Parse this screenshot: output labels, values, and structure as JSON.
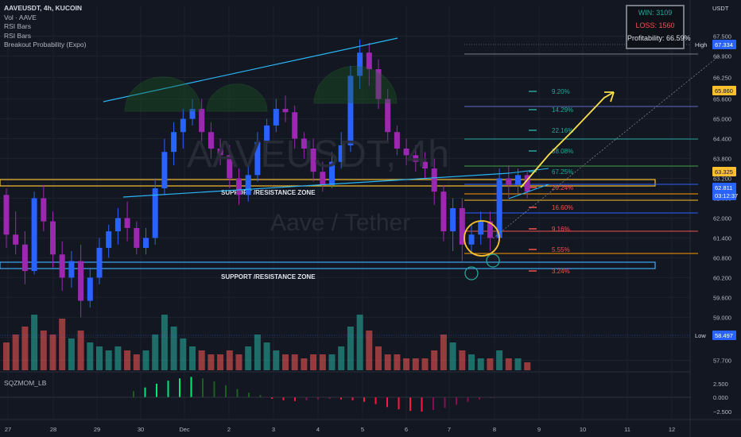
{
  "header": {
    "symbol_line": "AAVEUSDT, 4h, KUCOIN",
    "indicators": [
      "Vol · AAVE",
      "RSI Bars",
      "RSI Bars",
      "Breakout Probability (Expo)"
    ]
  },
  "stats": {
    "win": "WIN: 3109",
    "loss": "LOSS: 1560",
    "profitability": "Profitability: 66.59%"
  },
  "currency": "USDT",
  "watermark": {
    "main": "AAVEUSDT, 4h",
    "sub": "Aave / Tether"
  },
  "oscillator": {
    "label": "SQZMOM_LB",
    "ticks": [
      "2.500",
      "0.000",
      "−2.500"
    ]
  },
  "zones": {
    "upper_label": "SUPPORT /RESISTANCE ZONE",
    "lower_label": "SUPPORT /RESISTANCE ZONE"
  },
  "markers": {
    "high_label": "High",
    "high_value": "67.334",
    "low_label": "Low",
    "low_value": "58.497",
    "level_1": "65.860",
    "level_2": "63.325",
    "price": "62.811",
    "countdown": "03:12:37"
  },
  "colors": {
    "bull": "#2962ff",
    "bear": "#9c27b0",
    "vol_up": "#26a69a",
    "vol_down": "#ef5350",
    "zone": "#fbc02d",
    "zone2": "#42a5f5",
    "trend": "#29b6f6"
  },
  "chart_data": {
    "type": "candlestick",
    "x_ticks": [
      "27",
      "28",
      "29",
      "30",
      "Dec",
      "2",
      "3",
      "4",
      "5",
      "6",
      "7",
      "8",
      "9",
      "10",
      "11",
      "12"
    ],
    "y_ticks": [
      67.5,
      66.9,
      66.25,
      65.6,
      65.0,
      64.4,
      63.8,
      63.2,
      62.6,
      62.0,
      61.4,
      60.8,
      60.2,
      59.6,
      59.0,
      58.4,
      57.7
    ],
    "y_tick_labels": [
      "67.500",
      "66.900",
      "66.250",
      "65.600",
      "65.000",
      "64.400",
      "63.800",
      "63.200",
      "62.600",
      "62.000",
      "61.400",
      "60.800",
      "60.200",
      "59.600",
      "59.000",
      "58.400",
      "57.700"
    ],
    "ylim": [
      57.4,
      68.4
    ],
    "breakout_levels": [
      {
        "label": "9.20%",
        "color": "#26a69a"
      },
      {
        "label": "14.29%",
        "color": "#26a69a"
      },
      {
        "label": "22.16%",
        "color": "#26a69a"
      },
      {
        "label": "38.08%",
        "color": "#26a69a"
      },
      {
        "label": "67.25%",
        "color": "#26a69a"
      },
      {
        "label": "29.24%",
        "color": "#ef5350"
      },
      {
        "label": "16.60%",
        "color": "#ef5350"
      },
      {
        "label": "9.16%",
        "color": "#ef5350"
      },
      {
        "label": "5.55%",
        "color": "#ef5350"
      },
      {
        "label": "3.24%",
        "color": "#ef5350"
      }
    ],
    "candles_ohlc": [
      [
        62.7,
        62.9,
        61.1,
        61.5
      ],
      [
        61.5,
        62.2,
        60.9,
        61.2
      ],
      [
        61.2,
        61.6,
        60.0,
        60.4
      ],
      [
        60.4,
        62.8,
        60.3,
        62.6
      ],
      [
        62.6,
        63.0,
        61.6,
        61.9
      ],
      [
        61.9,
        62.2,
        60.5,
        60.9
      ],
      [
        60.9,
        61.3,
        59.8,
        60.2
      ],
      [
        60.2,
        61.0,
        59.9,
        60.7
      ],
      [
        60.7,
        61.2,
        59.0,
        59.5
      ],
      [
        59.5,
        60.5,
        59.3,
        60.2
      ],
      [
        60.2,
        61.4,
        60.0,
        61.1
      ],
      [
        61.1,
        61.8,
        60.8,
        61.6
      ],
      [
        61.6,
        62.3,
        61.2,
        62.0
      ],
      [
        62.0,
        62.5,
        61.3,
        61.7
      ],
      [
        61.7,
        61.9,
        60.9,
        61.1
      ],
      [
        61.1,
        61.7,
        60.9,
        61.4
      ],
      [
        61.4,
        63.2,
        61.2,
        62.9
      ],
      [
        62.9,
        64.4,
        62.7,
        64.0
      ],
      [
        64.0,
        64.9,
        63.6,
        64.6
      ],
      [
        64.6,
        65.3,
        64.1,
        65.0
      ],
      [
        65.0,
        65.6,
        64.8,
        65.3
      ],
      [
        65.3,
        65.6,
        64.3,
        64.6
      ],
      [
        64.6,
        64.9,
        63.8,
        64.1
      ],
      [
        64.1,
        64.4,
        63.6,
        63.9
      ],
      [
        63.9,
        64.2,
        62.9,
        63.2
      ],
      [
        63.2,
        63.5,
        62.4,
        62.7
      ],
      [
        62.7,
        63.6,
        62.5,
        63.3
      ],
      [
        63.3,
        64.6,
        63.1,
        64.3
      ],
      [
        64.3,
        65.0,
        64.0,
        64.8
      ],
      [
        64.8,
        65.6,
        64.6,
        65.3
      ],
      [
        65.3,
        65.7,
        64.9,
        65.2
      ],
      [
        65.2,
        65.4,
        64.1,
        64.4
      ],
      [
        64.4,
        64.6,
        63.8,
        64.1
      ],
      [
        64.1,
        64.4,
        63.1,
        63.4
      ],
      [
        63.4,
        63.7,
        62.8,
        63.0
      ],
      [
        63.0,
        64.0,
        62.9,
        63.7
      ],
      [
        63.7,
        64.6,
        63.5,
        64.2
      ],
      [
        64.2,
        66.6,
        64.0,
        66.3
      ],
      [
        66.3,
        67.4,
        65.9,
        67.0
      ],
      [
        67.0,
        67.3,
        66.0,
        66.5
      ],
      [
        66.5,
        66.8,
        65.3,
        65.6
      ],
      [
        65.6,
        65.9,
        64.3,
        64.6
      ],
      [
        64.6,
        64.8,
        63.9,
        64.1
      ],
      [
        64.1,
        64.4,
        63.6,
        63.9
      ],
      [
        63.9,
        64.2,
        63.4,
        63.7
      ],
      [
        63.7,
        64.0,
        63.2,
        63.5
      ],
      [
        63.5,
        63.8,
        62.4,
        62.8
      ],
      [
        62.8,
        63.0,
        61.3,
        61.6
      ],
      [
        61.6,
        62.6,
        61.0,
        62.3
      ],
      [
        62.3,
        62.6,
        60.7,
        61.2
      ],
      [
        61.2,
        61.8,
        60.9,
        61.5
      ],
      [
        61.5,
        62.2,
        61.2,
        61.9
      ],
      [
        61.9,
        62.2,
        61.0,
        61.4
      ],
      [
        61.4,
        63.5,
        61.3,
        63.2
      ],
      [
        63.2,
        63.6,
        62.6,
        63.0
      ],
      [
        63.0,
        63.5,
        62.7,
        63.3
      ],
      [
        63.3,
        63.4,
        62.6,
        62.8
      ]
    ],
    "volume": [
      7,
      9,
      11,
      14,
      10,
      9,
      13,
      8,
      10,
      7,
      6,
      5,
      6,
      5,
      4,
      5,
      9,
      14,
      11,
      8,
      6,
      5,
      4,
      4,
      5,
      4,
      6,
      9,
      7,
      5,
      4,
      4,
      3,
      4,
      4,
      4,
      6,
      11,
      14,
      10,
      6,
      4,
      4,
      3,
      3,
      3,
      5,
      9,
      7,
      5,
      4,
      3,
      3,
      5,
      3,
      3,
      2
    ],
    "momentum": [
      0.8,
      1.3,
      1.8,
      2.2,
      2.5,
      2.7,
      2.5,
      2.1,
      1.6,
      1.1,
      0.6,
      0.3,
      -0.2,
      -0.4,
      -0.5,
      -0.4,
      -0.3,
      -0.2,
      -0.3,
      -0.4,
      -0.6,
      -0.9,
      -1.3,
      -1.6,
      -1.8,
      -1.9,
      -1.7,
      -1.4,
      -1.0,
      -0.6,
      -0.3,
      -0.1
    ]
  }
}
